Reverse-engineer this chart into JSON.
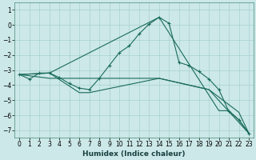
{
  "xlabel": "Humidex (Indice chaleur)",
  "background_color": "#cce8e8",
  "grid_color": "#a8d0d0",
  "line_color": "#1a6b5a",
  "xlim": [
    -0.5,
    23.5
  ],
  "ylim": [
    -7.5,
    1.5
  ],
  "yticks": [
    1,
    0,
    -1,
    -2,
    -3,
    -4,
    -5,
    -6,
    -7
  ],
  "xticks": [
    0,
    1,
    2,
    3,
    4,
    5,
    6,
    7,
    8,
    9,
    10,
    11,
    12,
    13,
    14,
    15,
    16,
    17,
    18,
    19,
    20,
    21,
    22,
    23
  ],
  "lines": [
    {
      "x": [
        0,
        1,
        2,
        3,
        4,
        5,
        6,
        7,
        8,
        9,
        10,
        11,
        12,
        13,
        14,
        15,
        16,
        17,
        18,
        19,
        20,
        21,
        22,
        23
      ],
      "y": [
        -3.3,
        -3.6,
        -3.2,
        -3.2,
        -3.5,
        -3.9,
        -4.2,
        -4.3,
        -3.55,
        -2.7,
        -1.85,
        -1.4,
        -0.6,
        0.05,
        0.5,
        0.1,
        -2.5,
        -2.7,
        -3.1,
        -3.6,
        -4.3,
        -5.75,
        -6.3,
        -7.2
      ],
      "marker": true
    },
    {
      "x": [
        0,
        3,
        14,
        19,
        23
      ],
      "y": [
        -3.3,
        -3.55,
        -3.55,
        -4.3,
        -7.2
      ],
      "marker": false
    },
    {
      "x": [
        0,
        3,
        6,
        7,
        14,
        19,
        22,
        23
      ],
      "y": [
        -3.3,
        -3.2,
        -4.5,
        -4.5,
        -3.55,
        -4.3,
        -5.8,
        -7.2
      ],
      "marker": false
    },
    {
      "x": [
        0,
        3,
        14,
        20,
        21,
        22,
        23
      ],
      "y": [
        -3.3,
        -3.2,
        0.5,
        -5.7,
        -5.7,
        -6.3,
        -7.2
      ],
      "marker": false
    }
  ]
}
